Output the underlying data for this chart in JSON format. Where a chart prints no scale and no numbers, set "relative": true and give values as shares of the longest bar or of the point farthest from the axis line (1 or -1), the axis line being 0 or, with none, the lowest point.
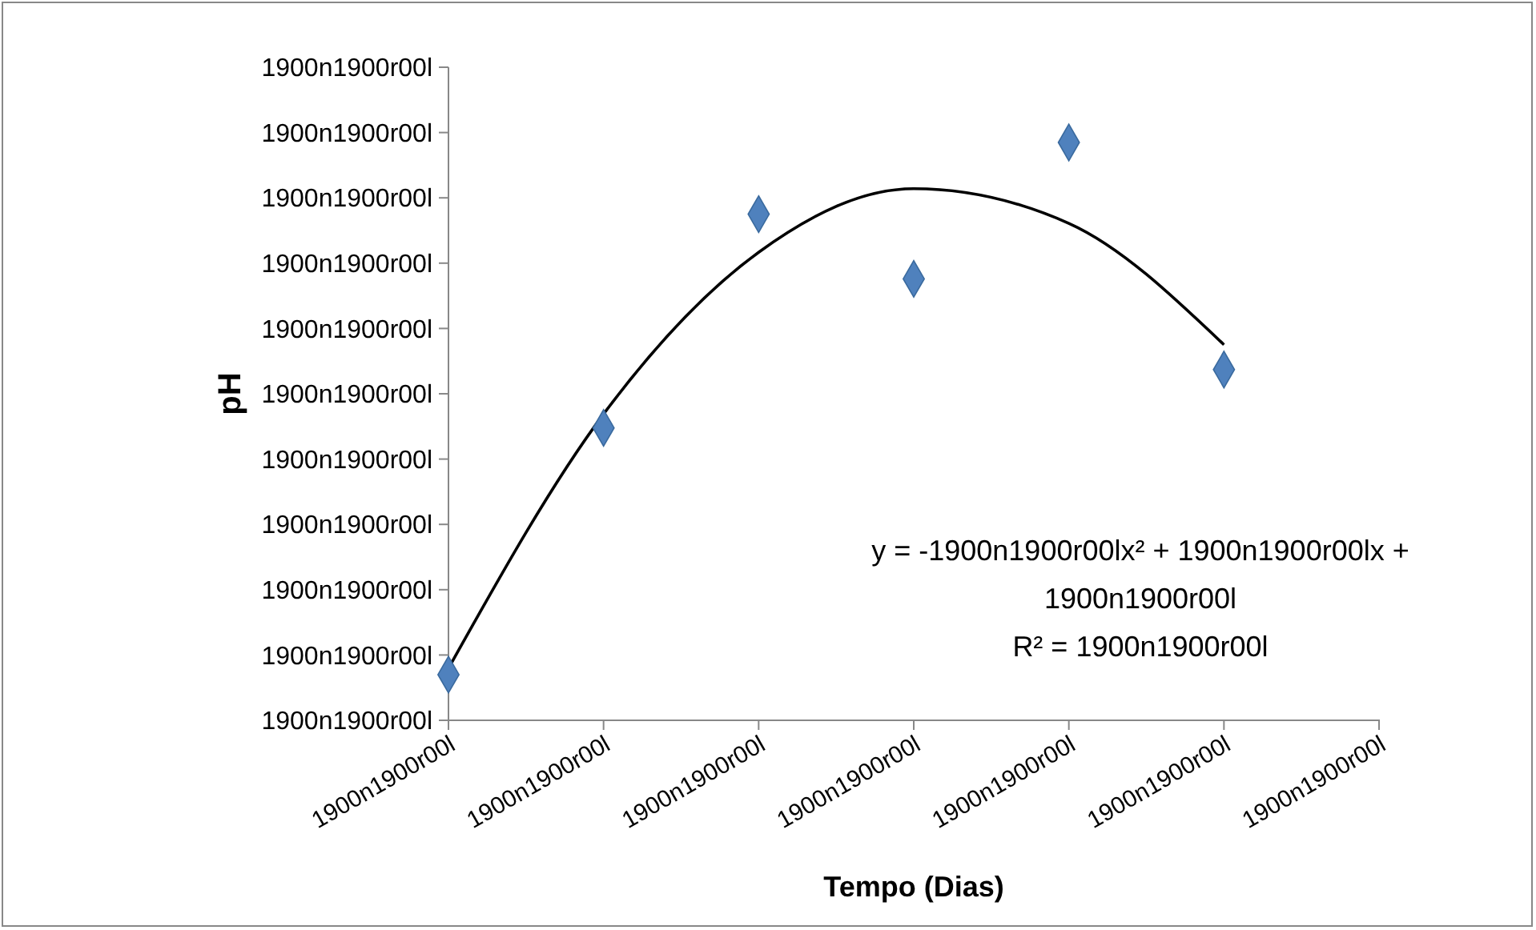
{
  "chart_data": {
    "type": "scatter",
    "xlabel": "Tempo (Dias)",
    "ylabel": "pH",
    "relative": true,
    "categories": [
      "1900n1900r00l",
      "1900n1900r00l",
      "1900n1900r00l",
      "1900n1900r00l",
      "1900n1900r00l",
      "1900n1900r00l",
      "1900n1900r00l"
    ],
    "series": [
      {
        "color": "#4f81bd",
        "marker": "diamond",
        "values": [
          0.079,
          0.506,
          0.876,
          0.764,
          1,
          0.607,
          null
        ]
      },
      {
        "type": "line",
        "color": "#000000",
        "values": [
          0.09,
          0.53,
          0.81,
          0.92,
          0.86,
          0.65,
          null
        ]
      }
    ],
    "annotations": [
      "y = -1900n1900r00lx² + 1900n1900r00lx +",
      "1900n1900r00l",
      "R² = 1900n1900r00l",
      "1900n1900r00l",
      "1900n1900r00l",
      "1900n1900r00l",
      "1900n1900r00l",
      "1900n1900r00l",
      "1900n1900r00l",
      "1900n1900r00l",
      "1900n1900r00l",
      "1900n1900r00l",
      "1900n1900r00l",
      "1900n1900r00l"
    ]
  }
}
